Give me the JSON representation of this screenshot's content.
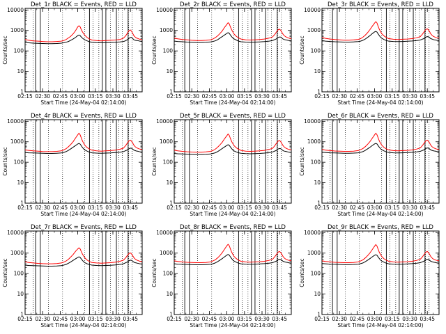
{
  "chart_data": {
    "type": "line",
    "common": {
      "xlabel": "Start Time (24-May-04 02:14:00)",
      "ylabel": "Counts/sec",
      "x_tick_labels": [
        "02:15",
        "02:30",
        "02:45",
        "03:00",
        "03:15",
        "03:30",
        "03:45"
      ],
      "x_tick_minutes": [
        1,
        16,
        31,
        46,
        61,
        76,
        91
      ],
      "xlim_minutes": [
        1,
        101
      ],
      "y_scale": "log",
      "ylim": [
        1,
        12000
      ],
      "y_tick_values": [
        1,
        10,
        100,
        1000,
        10000
      ],
      "y_tick_labels": [
        "1",
        "10",
        "100",
        "1000",
        "10000"
      ],
      "vertical_lines_solid_minutes": [
        10,
        14,
        56,
        67,
        70,
        79,
        89
      ],
      "vertical_lines_dotted_minutes": [
        8,
        21,
        33,
        52,
        59,
        64,
        74,
        81,
        84,
        89.5,
        92.5
      ],
      "x_minutes": [
        1,
        4,
        8,
        12,
        16,
        20,
        24,
        28,
        32,
        34,
        36,
        38,
        40,
        42,
        44,
        46,
        47,
        48,
        49,
        50,
        51,
        52,
        54,
        56,
        58,
        62,
        66,
        70,
        74,
        78,
        82,
        85,
        86,
        87,
        88,
        89,
        90,
        91,
        92,
        93,
        94,
        95,
        96,
        97,
        98,
        99,
        101
      ],
      "series_colors": {
        "events": "#000000",
        "lld": "#ff0000"
      }
    },
    "panels": [
      {
        "title": "Det_1r BLACK = Events, RED = LLD",
        "events": [
          260,
          250,
          240,
          235,
          230,
          225,
          225,
          230,
          240,
          250,
          265,
          290,
          330,
          380,
          450,
          560,
          600,
          560,
          480,
          420,
          380,
          350,
          310,
          280,
          265,
          255,
          250,
          255,
          260,
          265,
          275,
          290,
          300,
          320,
          340,
          380,
          420,
          450,
          460,
          400,
          350,
          330,
          320,
          320,
          310,
          300,
          290
        ],
        "lld": [
          360,
          330,
          310,
          300,
          290,
          280,
          280,
          290,
          300,
          320,
          360,
          430,
          520,
          680,
          950,
          1500,
          1700,
          1500,
          1100,
          850,
          700,
          580,
          450,
          380,
          340,
          320,
          310,
          320,
          330,
          340,
          360,
          420,
          480,
          560,
          680,
          850,
          1000,
          1050,
          900,
          700,
          550,
          480,
          430,
          410,
          390,
          370,
          350
        ]
      },
      {
        "title": "Det_2r BLACK = Events, RED = LLD",
        "events": [
          300,
          290,
          280,
          270,
          265,
          260,
          260,
          265,
          275,
          290,
          310,
          350,
          420,
          500,
          600,
          720,
          780,
          720,
          600,
          500,
          430,
          390,
          340,
          300,
          280,
          270,
          265,
          270,
          275,
          285,
          300,
          320,
          340,
          360,
          380,
          420,
          460,
          480,
          470,
          420,
          380,
          360,
          350,
          340,
          330,
          320,
          310
        ],
        "lld": [
          420,
          390,
          360,
          345,
          330,
          320,
          320,
          330,
          350,
          380,
          440,
          540,
          700,
          950,
          1400,
          2000,
          2400,
          2100,
          1500,
          1100,
          850,
          680,
          520,
          430,
          380,
          350,
          340,
          350,
          360,
          380,
          420,
          480,
          560,
          650,
          800,
          950,
          1100,
          1150,
          1000,
          800,
          650,
          560,
          500,
          470,
          440,
          420,
          400
        ]
      },
      {
        "title": "Det_3r BLACK = Events, RED = LLD",
        "events": [
          320,
          300,
          290,
          280,
          275,
          270,
          270,
          275,
          285,
          300,
          330,
          380,
          460,
          560,
          700,
          850,
          900,
          830,
          680,
          560,
          470,
          420,
          360,
          320,
          300,
          290,
          285,
          290,
          295,
          305,
          320,
          340,
          360,
          380,
          400,
          440,
          480,
          500,
          490,
          440,
          400,
          380,
          360,
          350,
          340,
          330,
          320
        ],
        "lld": [
          450,
          410,
          380,
          360,
          345,
          335,
          335,
          345,
          365,
          400,
          470,
          590,
          780,
          1100,
          1600,
          2300,
          2700,
          2300,
          1600,
          1150,
          880,
          700,
          540,
          450,
          400,
          370,
          360,
          370,
          380,
          400,
          440,
          500,
          580,
          680,
          820,
          980,
          1150,
          1200,
          1050,
          850,
          680,
          580,
          520,
          490,
          460,
          440,
          420
        ]
      },
      {
        "title": "Det_4r BLACK = Events, RED = LLD",
        "events": [
          300,
          290,
          285,
          280,
          275,
          270,
          270,
          275,
          285,
          300,
          330,
          380,
          450,
          540,
          650,
          780,
          830,
          770,
          640,
          530,
          450,
          400,
          350,
          310,
          290,
          280,
          275,
          280,
          285,
          295,
          310,
          330,
          350,
          370,
          390,
          430,
          470,
          490,
          480,
          430,
          390,
          370,
          355,
          345,
          335,
          325,
          315
        ],
        "lld": [
          400,
          380,
          360,
          345,
          335,
          330,
          330,
          340,
          360,
          400,
          460,
          570,
          740,
          1000,
          1500,
          2200,
          2600,
          2200,
          1550,
          1100,
          850,
          680,
          520,
          440,
          390,
          360,
          350,
          360,
          370,
          390,
          430,
          490,
          570,
          670,
          810,
          970,
          1150,
          1200,
          1050,
          850,
          680,
          580,
          520,
          490,
          460,
          440,
          420
        ]
      },
      {
        "title": "Det_5r BLACK = Events, RED = LLD",
        "events": [
          270,
          260,
          255,
          250,
          245,
          240,
          240,
          245,
          255,
          270,
          290,
          330,
          390,
          470,
          560,
          670,
          720,
          670,
          560,
          470,
          400,
          360,
          320,
          290,
          275,
          265,
          260,
          265,
          270,
          280,
          295,
          315,
          335,
          355,
          375,
          410,
          450,
          470,
          460,
          410,
          370,
          350,
          340,
          330,
          320,
          310,
          300
        ],
        "lld": [
          390,
          360,
          340,
          325,
          315,
          310,
          310,
          320,
          340,
          370,
          430,
          540,
          700,
          950,
          1400,
          2000,
          2400,
          2050,
          1450,
          1050,
          820,
          660,
          510,
          430,
          380,
          350,
          340,
          350,
          360,
          380,
          420,
          480,
          560,
          660,
          800,
          950,
          1100,
          1150,
          1000,
          800,
          650,
          560,
          500,
          470,
          440,
          420,
          400
        ]
      },
      {
        "title": "Det_6r BLACK = Events, RED = LLD",
        "events": [
          310,
          300,
          290,
          285,
          280,
          275,
          275,
          280,
          290,
          305,
          330,
          380,
          450,
          540,
          660,
          790,
          840,
          780,
          650,
          540,
          460,
          410,
          360,
          320,
          300,
          290,
          285,
          290,
          295,
          305,
          320,
          340,
          360,
          380,
          400,
          440,
          480,
          500,
          490,
          440,
          400,
          380,
          365,
          355,
          345,
          335,
          325
        ],
        "lld": [
          420,
          390,
          370,
          355,
          345,
          340,
          340,
          350,
          370,
          410,
          470,
          580,
          750,
          1020,
          1500,
          2200,
          2600,
          2200,
          1550,
          1100,
          860,
          690,
          530,
          450,
          400,
          370,
          360,
          370,
          380,
          400,
          440,
          500,
          580,
          680,
          820,
          980,
          1150,
          1200,
          1050,
          850,
          680,
          580,
          520,
          490,
          460,
          440,
          420
        ]
      },
      {
        "title": "Det_7r BLACK = Events, RED = LLD",
        "events": [
          260,
          250,
          245,
          240,
          235,
          230,
          230,
          235,
          245,
          260,
          280,
          320,
          370,
          440,
          520,
          620,
          660,
          620,
          520,
          440,
          380,
          340,
          300,
          275,
          260,
          250,
          245,
          250,
          255,
          265,
          280,
          300,
          320,
          340,
          360,
          390,
          430,
          450,
          440,
          400,
          360,
          340,
          330,
          320,
          310,
          300,
          290
        ],
        "lld": [
          380,
          350,
          330,
          315,
          305,
          300,
          300,
          310,
          330,
          360,
          410,
          500,
          640,
          850,
          1200,
          1600,
          1800,
          1600,
          1200,
          900,
          720,
          590,
          460,
          390,
          350,
          330,
          320,
          330,
          340,
          360,
          400,
          450,
          520,
          600,
          720,
          850,
          980,
          1020,
          900,
          730,
          600,
          520,
          470,
          440,
          420,
          400,
          380
        ]
      },
      {
        "title": "Det_8r BLACK = Events, RED = LLD",
        "events": [
          300,
          290,
          285,
          280,
          275,
          270,
          270,
          275,
          285,
          300,
          330,
          380,
          450,
          540,
          660,
          800,
          860,
          800,
          660,
          550,
          460,
          410,
          360,
          320,
          300,
          290,
          285,
          290,
          295,
          305,
          320,
          340,
          360,
          380,
          400,
          440,
          480,
          500,
          490,
          440,
          400,
          380,
          365,
          355,
          345,
          335,
          325
        ],
        "lld": [
          420,
          390,
          370,
          355,
          345,
          340,
          340,
          350,
          370,
          410,
          470,
          580,
          760,
          1050,
          1550,
          2300,
          2700,
          2300,
          1600,
          1150,
          880,
          700,
          540,
          450,
          400,
          370,
          360,
          370,
          380,
          400,
          440,
          500,
          580,
          680,
          820,
          980,
          1150,
          1200,
          1050,
          850,
          680,
          580,
          520,
          490,
          460,
          440,
          420
        ]
      },
      {
        "title": "Det_9r BLACK = Events, RED = LLD",
        "events": [
          310,
          300,
          290,
          285,
          280,
          275,
          275,
          280,
          290,
          305,
          330,
          380,
          450,
          540,
          660,
          790,
          840,
          780,
          650,
          540,
          460,
          410,
          360,
          320,
          300,
          290,
          285,
          290,
          295,
          305,
          320,
          340,
          360,
          380,
          400,
          440,
          480,
          500,
          490,
          440,
          400,
          380,
          365,
          355,
          345,
          335,
          325
        ],
        "lld": [
          420,
          390,
          370,
          355,
          345,
          340,
          340,
          350,
          370,
          410,
          470,
          580,
          750,
          1020,
          1500,
          2200,
          2600,
          2200,
          1550,
          1100,
          860,
          690,
          530,
          450,
          400,
          370,
          360,
          370,
          380,
          400,
          440,
          500,
          580,
          680,
          820,
          980,
          1150,
          1200,
          1050,
          850,
          680,
          580,
          520,
          490,
          460,
          440,
          420
        ]
      }
    ]
  }
}
